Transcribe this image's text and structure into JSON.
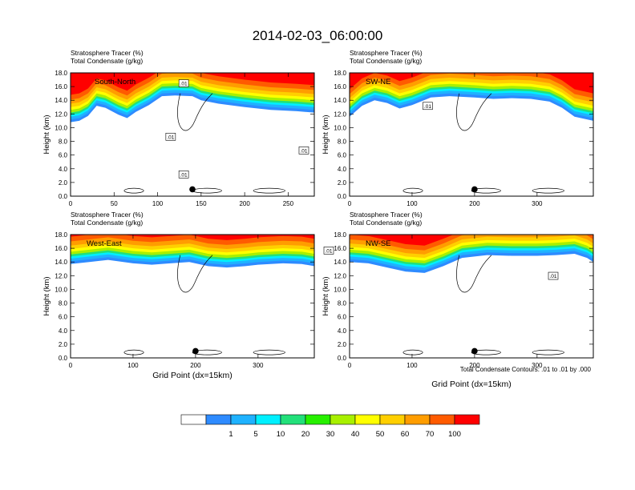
{
  "figure": {
    "title": "2014-02-03_06:00:00",
    "colorbar": {
      "colors": [
        "#ffffff",
        "#2e8bff",
        "#1fb2ff",
        "#00f0ff",
        "#22e07a",
        "#27f000",
        "#a8f000",
        "#ffff00",
        "#ffcf00",
        "#ff9d00",
        "#ff5b00",
        "#ff0000"
      ],
      "labels": [
        "1",
        "5",
        "10",
        "20",
        "30",
        "40",
        "50",
        "60",
        "70",
        "100"
      ]
    },
    "contour_note": "Total Condensate Contours: .01 to .01 by .000",
    "contour_label": ".01"
  },
  "chart_data": [
    {
      "type": "heatmap",
      "title": "Stratosphere Tracer   (%)",
      "subtitle": "Total Condensate   (g/kg)",
      "ylabel": "Height (km)",
      "xlabel": "",
      "ylim": [
        0,
        18
      ],
      "xlim": [
        0,
        280
      ],
      "xticks": [
        0,
        50,
        100,
        150,
        200,
        250
      ],
      "yticks": [
        "0.0",
        "2.0",
        "4.0",
        "6.0",
        "8.0",
        "10.0",
        "12.0",
        "14.0",
        "16.0",
        "18.0"
      ],
      "panel_label": "South-North",
      "tropopause_profile": [
        [
          0,
          12.4
        ],
        [
          10,
          12.6
        ],
        [
          20,
          13.3
        ],
        [
          30,
          14.8
        ],
        [
          40,
          14.5
        ],
        [
          55,
          13.5
        ],
        [
          65,
          13.0
        ],
        [
          75,
          13.9
        ],
        [
          90,
          14.9
        ],
        [
          105,
          16.2
        ],
        [
          120,
          16.3
        ],
        [
          140,
          16.2
        ],
        [
          150,
          15.6
        ],
        [
          170,
          15.1
        ],
        [
          200,
          14.6
        ],
        [
          230,
          14.2
        ],
        [
          260,
          14.0
        ],
        [
          280,
          13.8
        ]
      ],
      "marker": [
        140,
        1.0
      ],
      "contour_labels": [
        [
          130,
          16.3
        ],
        [
          115,
          8.5
        ],
        [
          130,
          3.0
        ],
        [
          268,
          6.5
        ]
      ]
    },
    {
      "type": "heatmap",
      "title": "Stratosphere Tracer   (%)",
      "subtitle": "Total Condensate   (g/kg)",
      "ylabel": "Height (km)",
      "xlabel": "",
      "ylim": [
        0,
        18
      ],
      "xlim": [
        0,
        390
      ],
      "xticks": [
        0,
        100,
        200,
        300
      ],
      "yticks": [
        "0.0",
        "2.0",
        "4.0",
        "6.0",
        "8.0",
        "10.0",
        "12.0",
        "14.0",
        "16.0",
        "18.0"
      ],
      "panel_label": "SW-NE",
      "tropopause_profile": [
        [
          0,
          13.2
        ],
        [
          20,
          14.8
        ],
        [
          40,
          15.6
        ],
        [
          60,
          15.2
        ],
        [
          80,
          14.4
        ],
        [
          100,
          14.9
        ],
        [
          130,
          16.0
        ],
        [
          160,
          16.2
        ],
        [
          200,
          16.0
        ],
        [
          230,
          15.8
        ],
        [
          260,
          15.9
        ],
        [
          290,
          15.8
        ],
        [
          320,
          15.4
        ],
        [
          340,
          14.5
        ],
        [
          360,
          13.2
        ],
        [
          390,
          12.6
        ]
      ],
      "marker": [
        200,
        1.0
      ],
      "contour_labels": [
        [
          125,
          13.0
        ]
      ]
    },
    {
      "type": "heatmap",
      "title": "Stratosphere Tracer   (%)",
      "subtitle": "Total Condensate   (g/kg)",
      "ylabel": "Height (km)",
      "xlabel": "Grid Point (dx=15km)",
      "ylim": [
        0,
        18
      ],
      "xlim": [
        0,
        390
      ],
      "xticks": [
        0,
        100,
        200,
        300
      ],
      "yticks": [
        "0.0",
        "2.0",
        "4.0",
        "6.0",
        "8.0",
        "10.0",
        "12.0",
        "14.0",
        "16.0",
        "18.0"
      ],
      "panel_label": "West-East",
      "tropopause_profile": [
        [
          0,
          15.3
        ],
        [
          30,
          15.6
        ],
        [
          60,
          15.9
        ],
        [
          100,
          15.4
        ],
        [
          130,
          15.2
        ],
        [
          160,
          15.4
        ],
        [
          190,
          15.6
        ],
        [
          220,
          15.0
        ],
        [
          250,
          14.8
        ],
        [
          280,
          15.0
        ],
        [
          300,
          15.2
        ],
        [
          340,
          15.4
        ],
        [
          370,
          15.3
        ],
        [
          390,
          15.0
        ]
      ],
      "marker": [
        200,
        1.0
      ],
      "contour_labels": []
    },
    {
      "type": "heatmap",
      "title": "Stratosphere Tracer   (%)",
      "subtitle": "Total Condensate   (g/kg)",
      "ylabel": "Height (km)",
      "xlabel": "Grid Point (dx=15km)",
      "ylim": [
        0,
        18
      ],
      "xlim": [
        0,
        390
      ],
      "xticks": [
        0,
        100,
        200,
        300
      ],
      "yticks": [
        "0.0",
        "2.0",
        "4.0",
        "6.0",
        "8.0",
        "10.0",
        "12.0",
        "14.0",
        "16.0",
        "18.0"
      ],
      "panel_label": "NW-SE",
      "tropopause_profile": [
        [
          0,
          15.6
        ],
        [
          30,
          15.4
        ],
        [
          60,
          14.8
        ],
        [
          90,
          14.2
        ],
        [
          120,
          14.0
        ],
        [
          150,
          15.0
        ],
        [
          180,
          16.2
        ],
        [
          220,
          16.6
        ],
        [
          260,
          16.5
        ],
        [
          300,
          16.5
        ],
        [
          330,
          16.6
        ],
        [
          360,
          16.8
        ],
        [
          380,
          16.2
        ],
        [
          390,
          15.6
        ]
      ],
      "marker": [
        200,
        1.0
      ],
      "contour_labels": [
        [
          410,
          15.5
        ],
        [
          690,
          11.8
        ]
      ]
    }
  ]
}
